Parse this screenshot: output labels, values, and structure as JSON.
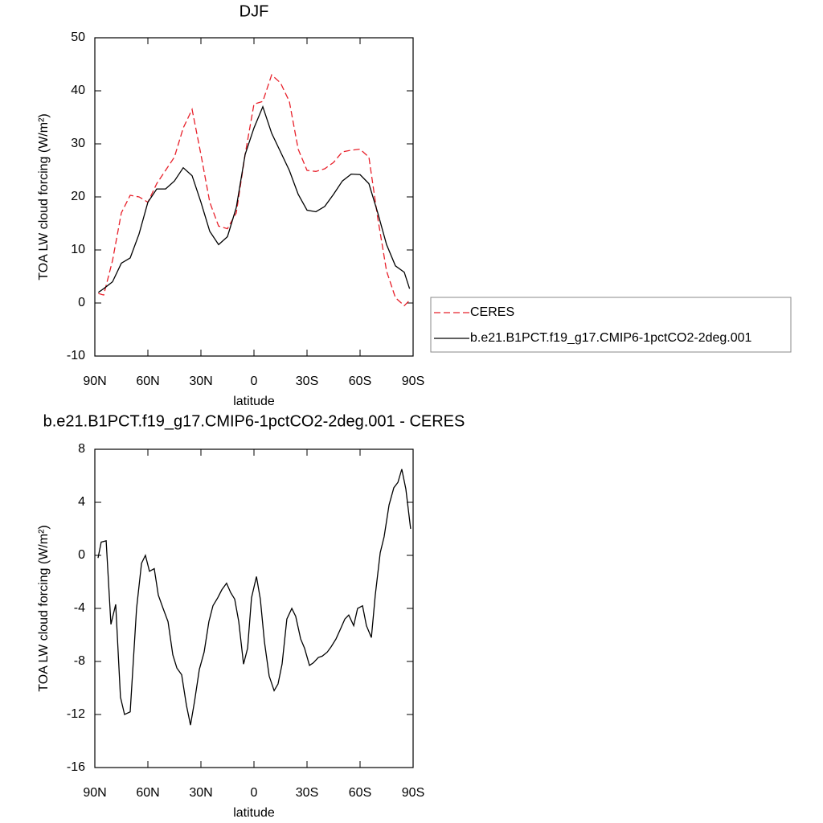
{
  "chart_data": [
    {
      "type": "line",
      "title": "DJF",
      "x_label": "latitude",
      "y_label": "TOA LW cloud forcing (W/m²)",
      "xlim": [
        90,
        -90
      ],
      "ylim": [
        -10,
        50
      ],
      "xticks": [
        {
          "value": 90,
          "label": "90N"
        },
        {
          "value": 60,
          "label": "60N"
        },
        {
          "value": 30,
          "label": "30N"
        },
        0,
        {
          "value": -30,
          "label": "30S"
        },
        {
          "value": -60,
          "label": "60S"
        },
        {
          "value": -90,
          "label": "90S"
        }
      ],
      "yticks": [
        -10,
        0,
        10,
        20,
        30,
        40,
        50
      ],
      "legend": "right",
      "x": [
        88,
        85,
        80,
        75,
        70,
        65,
        60,
        55,
        50,
        45,
        40,
        35,
        30,
        25,
        20,
        15,
        10,
        5,
        0,
        -5,
        -10,
        -15,
        -20,
        -25,
        -30,
        -35,
        -40,
        -45,
        -50,
        -55,
        -60,
        -65,
        -70,
        -75,
        -80,
        -85,
        -88
      ],
      "series": [
        {
          "name": "CERES",
          "color": "#e8202a",
          "style": "dashed",
          "values": [
            1.8,
            1.5,
            8,
            17,
            20.3,
            20,
            19,
            22.5,
            25,
            27.5,
            33,
            36.5,
            28,
            19,
            14.5,
            14,
            17,
            28,
            37.5,
            38,
            43,
            41.5,
            38,
            29,
            25,
            24.8,
            25.3,
            26.5,
            28.5,
            28.8,
            29,
            27.5,
            16,
            6,
            1,
            -0.5,
            0.5
          ]
        },
        {
          "name": "b.e21.B1PCT.f19_g17.CMIP6-1pctCO2-2deg.001",
          "color": "#000000",
          "style": "solid",
          "values": [
            2,
            2.7,
            4,
            7.5,
            8.5,
            13,
            19,
            21.5,
            21.5,
            23,
            25.5,
            24,
            19,
            13.5,
            11,
            12.5,
            18,
            28,
            33,
            37,
            32,
            28.5,
            25,
            20.5,
            17.5,
            17.2,
            18.2,
            20.5,
            23,
            24.3,
            24.2,
            22.5,
            17,
            11,
            7,
            5.8,
            2.7
          ]
        }
      ]
    },
    {
      "type": "line",
      "title": "b.e21.B1PCT.f19_g17.CMIP6-1pctCO2-2deg.001 - CERES",
      "x_label": "latitude",
      "y_label": "TOA LW cloud forcing (W/m²)",
      "xlim": [
        90,
        -90
      ],
      "ylim": [
        -16,
        8
      ],
      "xticks": [
        {
          "value": 90,
          "label": "90N"
        },
        {
          "value": 60,
          "label": "60N"
        },
        {
          "value": 30,
          "label": "30N"
        },
        0,
        {
          "value": -30,
          "label": "30S"
        },
        {
          "value": -60,
          "label": "60S"
        },
        {
          "value": -90,
          "label": "90S"
        }
      ],
      "yticks": [
        -16,
        -12,
        -8,
        -4,
        0,
        4,
        8
      ],
      "x": [
        88.2,
        86.4,
        83.6,
        80.9,
        78.2,
        75.5,
        73.2,
        70,
        66.4,
        63.6,
        61.4,
        59.1,
        56.4,
        54.1,
        51.4,
        48.6,
        45.9,
        43.6,
        40.9,
        38.2,
        35.9,
        33.6,
        30.9,
        28.2,
        25.5,
        23.2,
        20.5,
        18.2,
        15.5,
        13.2,
        10.9,
        8.6,
        5.9,
        3.6,
        1.4,
        -1.4,
        -3.6,
        -5.9,
        -8.6,
        -11.4,
        -13.6,
        -15.9,
        -18.6,
        -21.4,
        -23.6,
        -26.4,
        -28.6,
        -31.4,
        -33.6,
        -36.4,
        -38.6,
        -41.4,
        -43.6,
        -46.4,
        -49.1,
        -51.4,
        -53.6,
        -56.4,
        -58.6,
        -61.4,
        -63.6,
        -66.4,
        -68.6,
        -71.4,
        -73.6,
        -76.4,
        -79.1,
        -81.4,
        -83.6,
        -85.9,
        -88.6
      ],
      "series": [
        {
          "color": "#000000",
          "style": "solid",
          "values": [
            -0.2,
            1,
            1.1,
            -5.2,
            -3.7,
            -10.7,
            -12,
            -11.8,
            -4,
            -0.6,
            0,
            -1.2,
            -1,
            -3,
            -4,
            -5,
            -7.5,
            -8.5,
            -9,
            -11.3,
            -12.8,
            -11,
            -8.6,
            -7.3,
            -5,
            -3.8,
            -3.2,
            -2.6,
            -2.1,
            -2.8,
            -3.3,
            -5,
            -8.2,
            -7,
            -3.2,
            -1.6,
            -3.3,
            -6.5,
            -9.1,
            -10.2,
            -9.7,
            -8.2,
            -4.8,
            -4,
            -4.6,
            -6.3,
            -7,
            -8.3,
            -8.1,
            -7.7,
            -7.6,
            -7.3,
            -6.9,
            -6.3,
            -5.5,
            -4.8,
            -4.5,
            -5.3,
            -4,
            -3.8,
            -5.3,
            -6.2,
            -3,
            0.2,
            1.4,
            3.8,
            5.1,
            5.5,
            6.5,
            5,
            2
          ]
        }
      ]
    }
  ]
}
